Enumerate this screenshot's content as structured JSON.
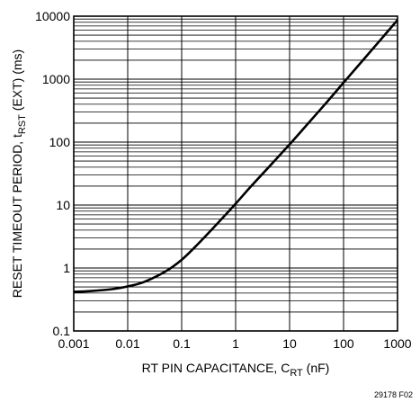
{
  "chart_data": {
    "type": "line",
    "xscale": "log",
    "yscale": "log",
    "xlim": [
      0.001,
      1000
    ],
    "ylim": [
      0.1,
      10000
    ],
    "grid": true,
    "xticks": [
      "0.001",
      "0.01",
      "0.1",
      "1",
      "10",
      "100",
      "1000"
    ],
    "yticks": [
      "0.1",
      "1",
      "10",
      "100",
      "1000",
      "10000"
    ],
    "xlabel": {
      "main": "RT PIN CAPACITANCE, C",
      "sub": "RT",
      "tail": " (nF)"
    },
    "ylabel": {
      "main": "RESET TIMEOUT PERIOD, t",
      "sub": "RST",
      "tail": " (EXT) (ms)"
    },
    "series": [
      {
        "x": [
          0.001,
          0.002,
          0.005,
          0.01,
          0.02,
          0.05,
          0.1,
          0.2,
          0.5,
          1,
          2,
          5,
          10,
          20,
          50,
          100,
          200,
          500,
          1000
        ],
        "y": [
          0.42,
          0.43,
          0.46,
          0.51,
          0.6,
          0.88,
          1.35,
          2.4,
          5.5,
          10.5,
          20.5,
          48,
          92,
          180,
          440,
          880,
          1750,
          4350,
          8700
        ]
      }
    ]
  },
  "figure_id": "29178 F02"
}
